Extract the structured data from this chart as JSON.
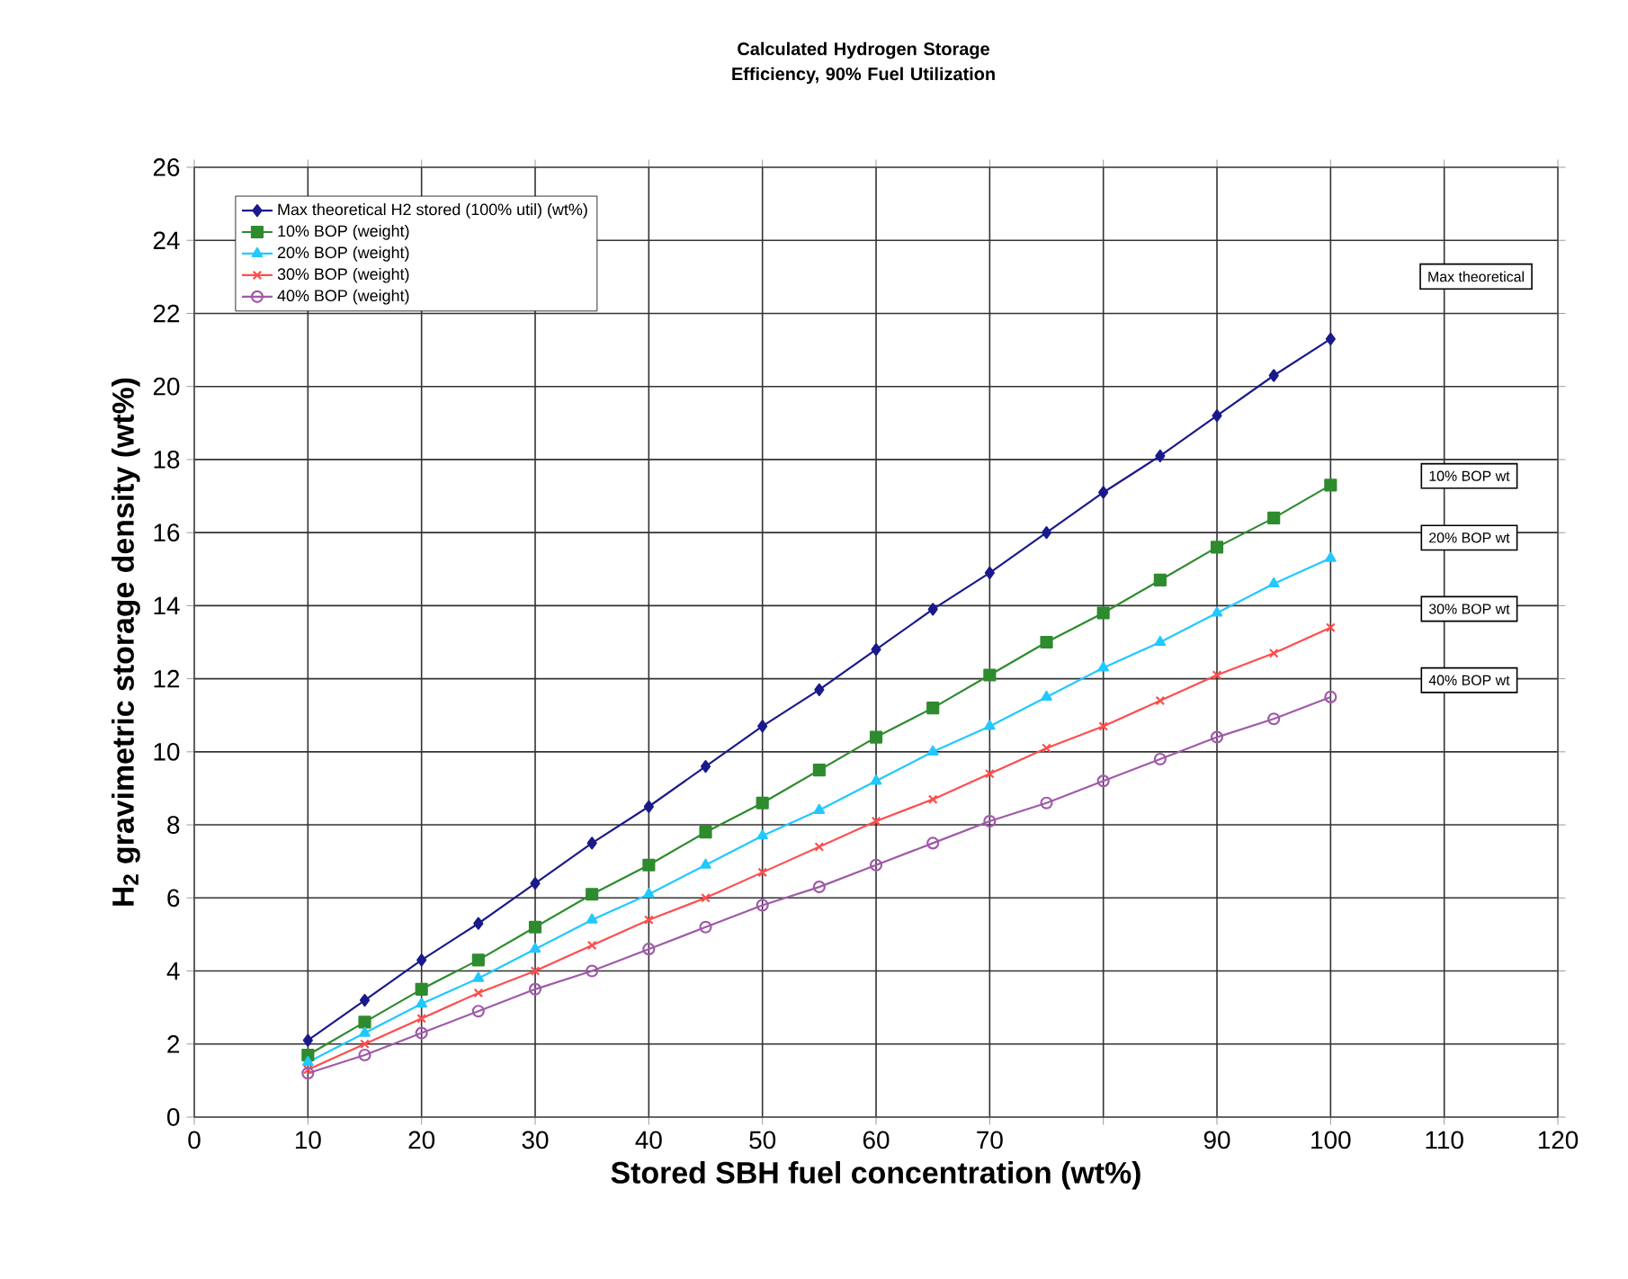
{
  "chart_data": {
    "type": "line",
    "title": "Calculated Hydrogen Storage Efficiency, 90% Fuel Utilization",
    "xlabel": "Stored SBH fuel concentration (wt%)",
    "ylabel": "H$_{2}$ gravimetric storage density (wt%)",
    "x": [
      10,
      15,
      20,
      25,
      30,
      35,
      40,
      45,
      50,
      55,
      60,
      65,
      70,
      75,
      80,
      85,
      90,
      95,
      100
    ],
    "series": [
      {
        "name": "Max theoretical H2 stored (100% util) (wt%)",
        "color": "#1a1a8c",
        "marker": "diamond",
        "values": [
          2.1,
          3.2,
          4.3,
          5.3,
          6.4,
          7.5,
          8.5,
          9.6,
          10.7,
          11.7,
          12.8,
          13.9,
          14.9,
          16.0,
          17.1,
          18.1,
          19.2,
          20.3,
          21.3
        ]
      },
      {
        "name": "10% BOP (weight)",
        "color": "#2e8b2e",
        "marker": "square",
        "values": [
          1.7,
          2.6,
          3.5,
          4.3,
          5.2,
          6.1,
          6.9,
          7.8,
          8.6,
          9.5,
          10.4,
          11.2,
          12.1,
          13.0,
          13.8,
          14.7,
          15.6,
          16.4,
          17.3
        ]
      },
      {
        "name": "20% BOP (weight)",
        "color": "#22c8ff",
        "marker": "triangle",
        "values": [
          1.5,
          2.3,
          3.1,
          3.8,
          4.6,
          5.4,
          6.1,
          6.9,
          7.7,
          8.4,
          9.2,
          10.0,
          10.7,
          11.5,
          12.3,
          13.0,
          13.8,
          14.6,
          15.3
        ]
      },
      {
        "name": "30% BOP (weight)",
        "color": "#ff4d4d",
        "marker": "cross",
        "values": [
          1.3,
          2.0,
          2.7,
          3.4,
          4.0,
          4.7,
          5.4,
          6.0,
          6.7,
          7.4,
          8.1,
          8.7,
          9.4,
          10.1,
          10.7,
          11.4,
          12.1,
          12.7,
          13.4
        ]
      },
      {
        "name": "40% BOP (weight)",
        "color": "#a05aa8",
        "marker": "circle",
        "values": [
          1.2,
          1.7,
          2.3,
          2.9,
          3.5,
          4.0,
          4.6,
          5.2,
          5.8,
          6.3,
          6.9,
          7.5,
          8.1,
          8.6,
          9.2,
          9.8,
          10.4,
          10.9,
          11.5
        ]
      }
    ],
    "xlim": [
      0,
      120
    ],
    "xticks": [
      0,
      10,
      20,
      30,
      40,
      50,
      60,
      70,
      {
        "value": 80,
        "label": null
      },
      90,
      100,
      110,
      120
    ],
    "ylim": [
      0,
      26
    ],
    "yticks": [
      0,
      2,
      4,
      6,
      8,
      10,
      12,
      14,
      16,
      18,
      20,
      22,
      24,
      26
    ],
    "grid": true,
    "legend": "top left",
    "line_style": "solid",
    "annotations": [
      "Max theoretical",
      "10% BOP wt",
      "20% BOP wt",
      "30% BOP wt",
      "40% BOP wt"
    ]
  }
}
